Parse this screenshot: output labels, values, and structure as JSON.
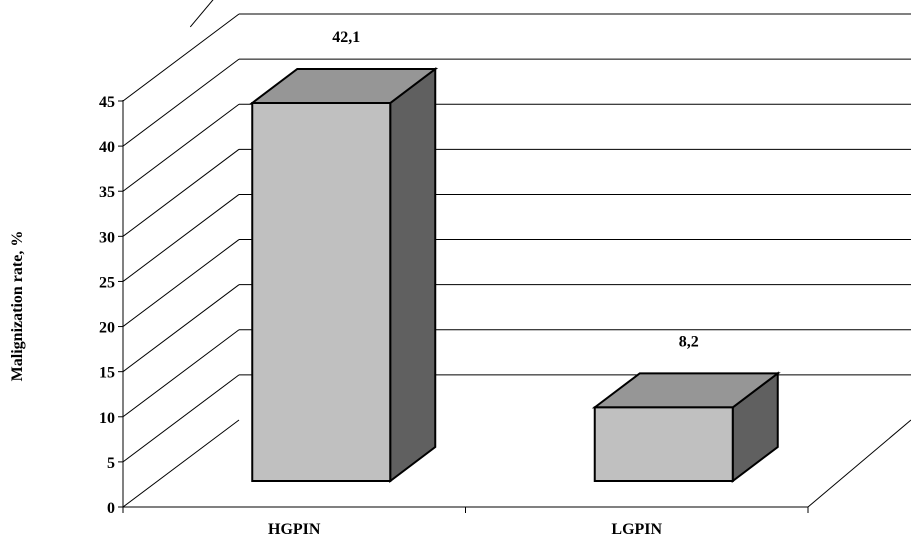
{
  "chart_data": {
    "type": "bar",
    "style": "3d-column",
    "categories": [
      "HGPIN",
      "LGPIN"
    ],
    "series": [
      {
        "values": [
          42.1,
          8.2
        ],
        "data_labels": [
          "42,1",
          "8,2"
        ]
      }
    ],
    "title": "",
    "xlabel": "",
    "ylabel": "Malignization rate, %",
    "ylim": [
      0,
      45
    ],
    "y_ticks": [
      "0",
      "5",
      "10",
      "15",
      "20",
      "25",
      "30",
      "35",
      "40",
      "45"
    ],
    "grid": true,
    "legend": "none",
    "colors": {
      "bar_front": "#c0c0c0",
      "bar_top": "#969696",
      "bar_side": "#606060",
      "outline": "#000000",
      "grid": "#000000"
    }
  }
}
